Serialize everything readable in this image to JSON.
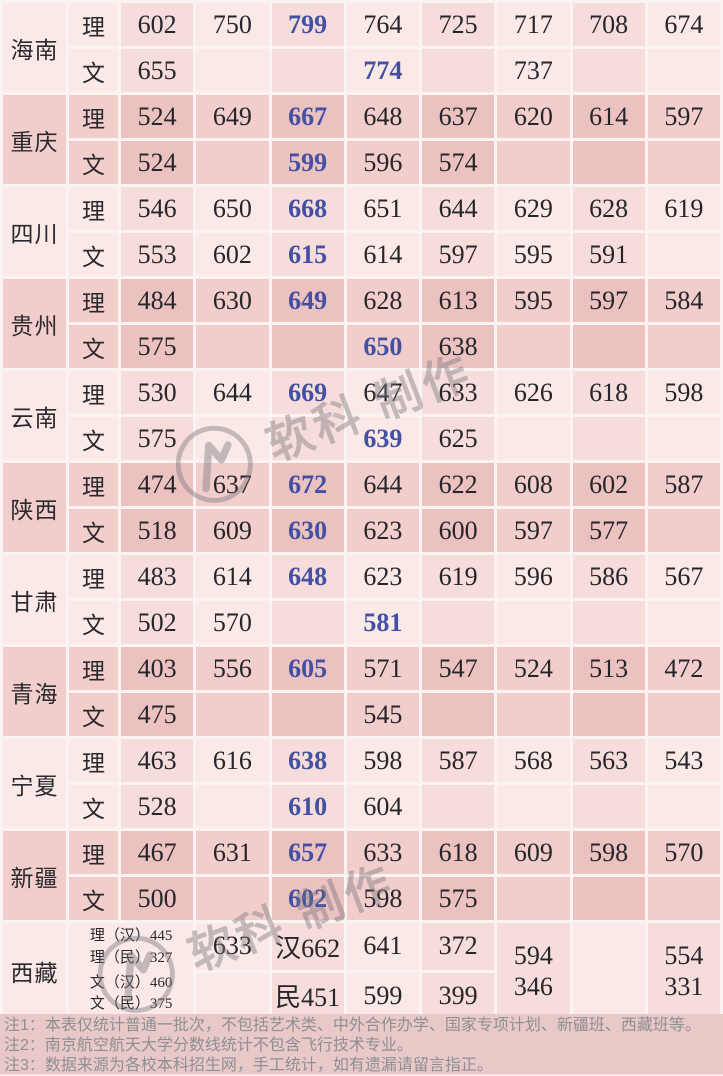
{
  "table": {
    "row_labels": [
      "理",
      "文"
    ],
    "provinces": [
      {
        "name": "海南",
        "tone": "light",
        "sci": [
          "602",
          "750",
          "799",
          "764",
          "725",
          "717",
          "708",
          "674"
        ],
        "sci_blue": [
          2
        ],
        "lib": [
          "655",
          "",
          "",
          "774",
          "",
          "737",
          "",
          ""
        ],
        "lib_blue": [
          3
        ]
      },
      {
        "name": "重庆",
        "tone": "dark",
        "sci": [
          "524",
          "649",
          "667",
          "648",
          "637",
          "620",
          "614",
          "597"
        ],
        "sci_blue": [
          2
        ],
        "lib": [
          "524",
          "",
          "599",
          "596",
          "574",
          "",
          "",
          ""
        ],
        "lib_blue": [
          2
        ]
      },
      {
        "name": "四川",
        "tone": "light",
        "sci": [
          "546",
          "650",
          "668",
          "651",
          "644",
          "629",
          "628",
          "619"
        ],
        "sci_blue": [
          2
        ],
        "lib": [
          "553",
          "602",
          "615",
          "614",
          "597",
          "595",
          "591",
          ""
        ],
        "lib_blue": [
          2
        ]
      },
      {
        "name": "贵州",
        "tone": "dark",
        "sci": [
          "484",
          "630",
          "649",
          "628",
          "613",
          "595",
          "597",
          "584"
        ],
        "sci_blue": [
          2
        ],
        "lib": [
          "575",
          "",
          "",
          "650",
          "638",
          "",
          "",
          ""
        ],
        "lib_blue": [
          3
        ]
      },
      {
        "name": "云南",
        "tone": "light",
        "sci": [
          "530",
          "644",
          "669",
          "647",
          "633",
          "626",
          "618",
          "598"
        ],
        "sci_blue": [
          2
        ],
        "lib": [
          "575",
          "",
          "",
          "639",
          "625",
          "",
          "",
          ""
        ],
        "lib_blue": [
          3
        ]
      },
      {
        "name": "陕西",
        "tone": "dark",
        "sci": [
          "474",
          "637",
          "672",
          "644",
          "622",
          "608",
          "602",
          "587"
        ],
        "sci_blue": [
          2
        ],
        "lib": [
          "518",
          "609",
          "630",
          "623",
          "600",
          "597",
          "577",
          ""
        ],
        "lib_blue": [
          2
        ]
      },
      {
        "name": "甘肃",
        "tone": "light",
        "sci": [
          "483",
          "614",
          "648",
          "623",
          "619",
          "596",
          "586",
          "567"
        ],
        "sci_blue": [
          2
        ],
        "lib": [
          "502",
          "570",
          "",
          "581",
          "",
          "",
          "",
          ""
        ],
        "lib_blue": [
          3
        ]
      },
      {
        "name": "青海",
        "tone": "dark",
        "sci": [
          "403",
          "556",
          "605",
          "571",
          "547",
          "524",
          "513",
          "472"
        ],
        "sci_blue": [
          2
        ],
        "lib": [
          "475",
          "",
          "",
          "545",
          "",
          "",
          "",
          ""
        ],
        "lib_blue": []
      },
      {
        "name": "宁夏",
        "tone": "light",
        "sci": [
          "463",
          "616",
          "638",
          "598",
          "587",
          "568",
          "563",
          "543"
        ],
        "sci_blue": [
          2
        ],
        "lib": [
          "528",
          "",
          "610",
          "604",
          "",
          "",
          "",
          ""
        ],
        "lib_blue": [
          2
        ]
      },
      {
        "name": "新疆",
        "tone": "dark",
        "sci": [
          "467",
          "631",
          "657",
          "633",
          "618",
          "609",
          "598",
          "570"
        ],
        "sci_blue": [
          2
        ],
        "lib": [
          "500",
          "",
          "602",
          "598",
          "575",
          "",
          "",
          ""
        ],
        "lib_blue": [
          2
        ]
      }
    ],
    "xizang": {
      "name": "西藏",
      "tone": "light",
      "label_lines": [
        "理（汉）445",
        "理（民）327",
        "文（汉）460",
        "文（民）375"
      ],
      "top_cells": [
        "633",
        "汉662",
        "641",
        "372"
      ],
      "bottom_cells": [
        "",
        "民451",
        "599",
        "399"
      ],
      "merged_cells": [
        [
          "594",
          "346"
        ],
        [],
        [
          "554",
          "331"
        ]
      ]
    }
  },
  "notes": [
    "注1：本表仅统计普通一批次，不包括艺术类、中外合作办学、国家专项计划、新疆班、西藏班等。",
    "注2：南京航空航天大学分数线统计不包含飞行技术专业。",
    "注3：数据来源为各校本科招生网，手工统计，如有遗漏请留言指正。"
  ],
  "watermark": {
    "brand": "软科",
    "suffix": "制作"
  },
  "colors": {
    "blue": "#4351a4",
    "light_bg": "#fae9e7",
    "dark_bg": "#f1cdcb",
    "note_bg": "#e9c9c8"
  }
}
